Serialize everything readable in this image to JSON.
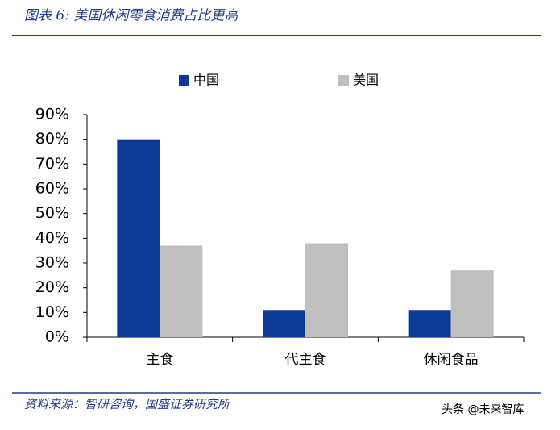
{
  "chart_data": {
    "type": "bar",
    "title": "图表 6:  美国休闲零食消费占比更高",
    "categories": [
      "主食",
      "代主食",
      "休闲食品"
    ],
    "series": [
      {
        "name": "中国",
        "color": "#0b3a96",
        "values": [
          80,
          11,
          11
        ]
      },
      {
        "name": "美国",
        "color": "#bfbfbf",
        "values": [
          37,
          38,
          27
        ]
      }
    ],
    "ylim": [
      0,
      90
    ],
    "yticks": [
      {
        "value": 0,
        "label": "0%"
      },
      {
        "value": 10,
        "label": "10%"
      },
      {
        "value": 20,
        "label": "20%"
      },
      {
        "value": 30,
        "label": "30%"
      },
      {
        "value": 40,
        "label": "40%"
      },
      {
        "value": 50,
        "label": "50%"
      },
      {
        "value": 60,
        "label": "60%"
      },
      {
        "value": 70,
        "label": "70%"
      },
      {
        "value": 80,
        "label": "80%"
      },
      {
        "value": 90,
        "label": "90%"
      }
    ],
    "source": "资料来源：智研咨询，国盛证券研究所",
    "watermark": "头条 @未来智库"
  }
}
